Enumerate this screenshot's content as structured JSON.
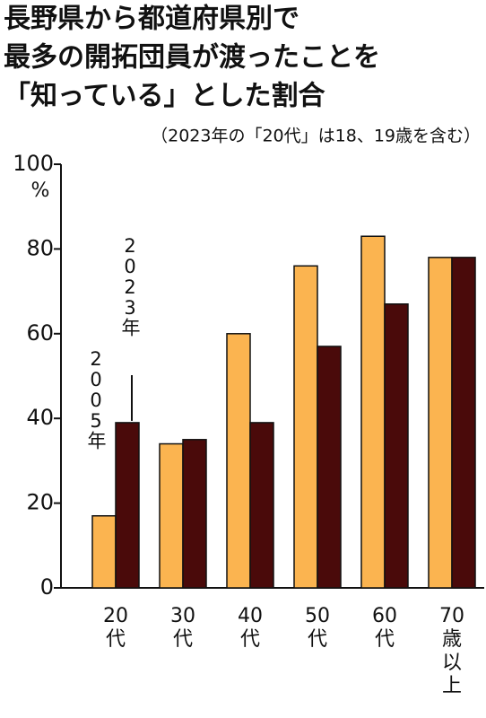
{
  "chart_data": {
    "type": "bar",
    "title": [
      "長野県から都道府県別で",
      "最多の開拓団員が渡ったことを",
      "「知っている」とした割合"
    ],
    "subtitle": "（2023年の「20代」は18、19歳を含む）",
    "y_unit": "%",
    "categories": [
      "20代",
      "30代",
      "40代",
      "50代",
      "60代",
      "70歳以上"
    ],
    "series": [
      {
        "name": "2005年",
        "color": "#fbb450",
        "values": [
          17,
          34,
          60,
          76,
          83,
          78
        ]
      },
      {
        "name": "2023年",
        "color": "#4a0a0a",
        "values": [
          39,
          35,
          39,
          57,
          67,
          78
        ]
      }
    ],
    "ylim": [
      0,
      100
    ],
    "yticks": [
      0,
      20,
      40,
      60,
      80,
      100
    ]
  }
}
